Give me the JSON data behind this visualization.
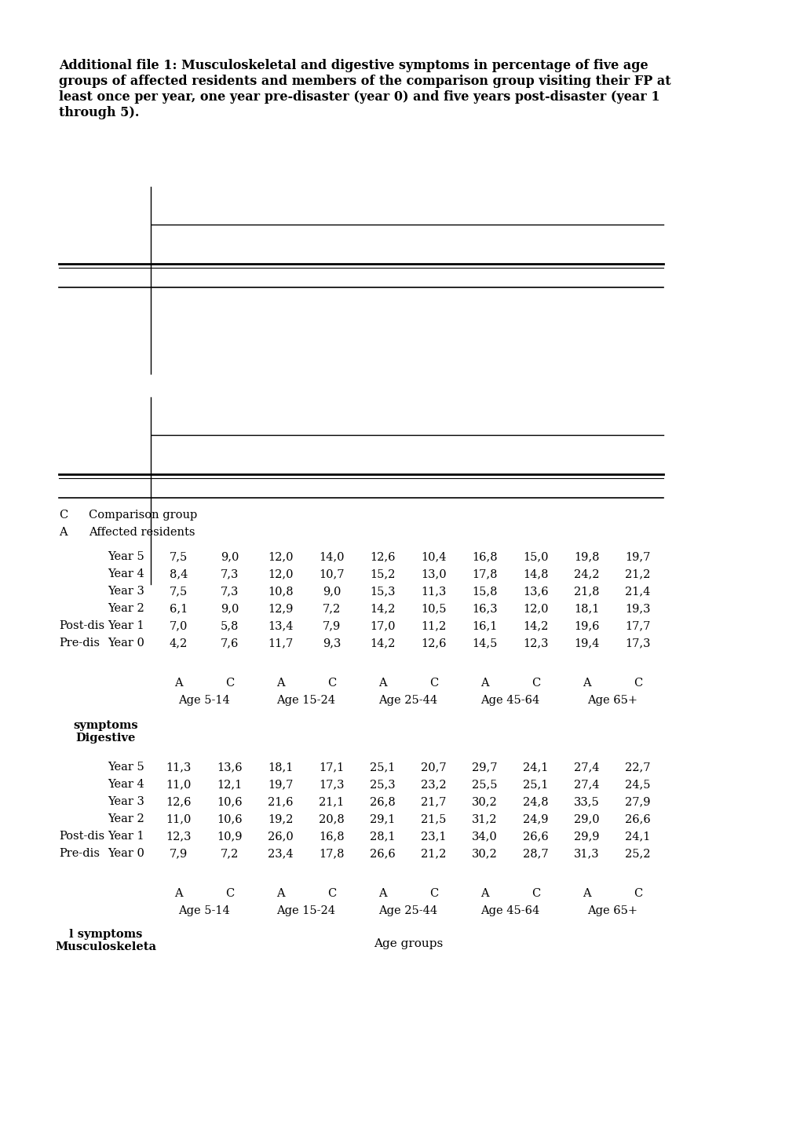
{
  "title_line1": "Additional file 1: Musculoskeletal and digestive symptoms in percentage of five age",
  "title_line2": "groups of affected residents and members of the comparison group visiting their FP at",
  "title_line3": "least once per year, one year pre-disaster (year 0) and five years post-disaster (year 1",
  "title_line4": "through 5).",
  "musculo_header_line1": "Musculoskeleta",
  "musculo_header_line2": "l symptoms",
  "digestive_header_line1": "Digestive",
  "digestive_header_line2": "symptoms",
  "age_groups_label": "Age groups",
  "age_group_headers": [
    "Age 5-14",
    "Age 15-24",
    "Age 25-44",
    "Age 45-64",
    "Age 65+"
  ],
  "row_labels_musculo": [
    [
      "Pre-dis",
      "Year 0"
    ],
    [
      "Post-dis",
      "Year 1"
    ],
    [
      "",
      "Year 2"
    ],
    [
      "",
      "Year 3"
    ],
    [
      "",
      "Year 4"
    ],
    [
      "",
      "Year 5"
    ]
  ],
  "musculo_data": [
    [
      "7,9",
      "7,2",
      "23,4",
      "17,8",
      "26,6",
      "21,2",
      "30,2",
      "28,7",
      "31,3",
      "25,2"
    ],
    [
      "12,3",
      "10,9",
      "26,0",
      "16,8",
      "28,1",
      "23,1",
      "34,0",
      "26,6",
      "29,9",
      "24,1"
    ],
    [
      "11,0",
      "10,6",
      "19,2",
      "20,8",
      "29,1",
      "21,5",
      "31,2",
      "24,9",
      "29,0",
      "26,6"
    ],
    [
      "12,6",
      "10,6",
      "21,6",
      "21,1",
      "26,8",
      "21,7",
      "30,2",
      "24,8",
      "33,5",
      "27,9"
    ],
    [
      "11,0",
      "12,1",
      "19,7",
      "17,3",
      "25,3",
      "23,2",
      "25,5",
      "25,1",
      "27,4",
      "24,5"
    ],
    [
      "11,3",
      "13,6",
      "18,1",
      "17,1",
      "25,1",
      "20,7",
      "29,7",
      "24,1",
      "27,4",
      "22,7"
    ]
  ],
  "row_labels_digestive": [
    [
      "Pre-dis",
      "Year 0"
    ],
    [
      "Post-dis",
      "Year 1"
    ],
    [
      "",
      "Year 2"
    ],
    [
      "",
      "Year 3"
    ],
    [
      "",
      "Year 4"
    ],
    [
      "",
      "Year 5"
    ]
  ],
  "digestive_data": [
    [
      "4,2",
      "7,6",
      "11,7",
      "9,3",
      "14,2",
      "12,6",
      "14,5",
      "12,3",
      "19,4",
      "17,3"
    ],
    [
      "7,0",
      "5,8",
      "13,4",
      "7,9",
      "17,0",
      "11,2",
      "16,1",
      "14,2",
      "19,6",
      "17,7"
    ],
    [
      "6,1",
      "9,0",
      "12,9",
      "7,2",
      "14,2",
      "10,5",
      "16,3",
      "12,0",
      "18,1",
      "19,3"
    ],
    [
      "7,5",
      "7,3",
      "10,8",
      "9,0",
      "15,3",
      "11,3",
      "15,8",
      "13,6",
      "21,8",
      "21,4"
    ],
    [
      "8,4",
      "7,3",
      "12,0",
      "10,7",
      "15,2",
      "13,0",
      "17,8",
      "14,8",
      "24,2",
      "21,2"
    ],
    [
      "7,5",
      "9,0",
      "12,0",
      "14,0",
      "12,6",
      "10,4",
      "16,8",
      "15,0",
      "19,8",
      "19,7"
    ]
  ],
  "bg_color": "#ffffff",
  "text_color": "#000000",
  "font_size": 10.5,
  "title_font_size": 11.5
}
